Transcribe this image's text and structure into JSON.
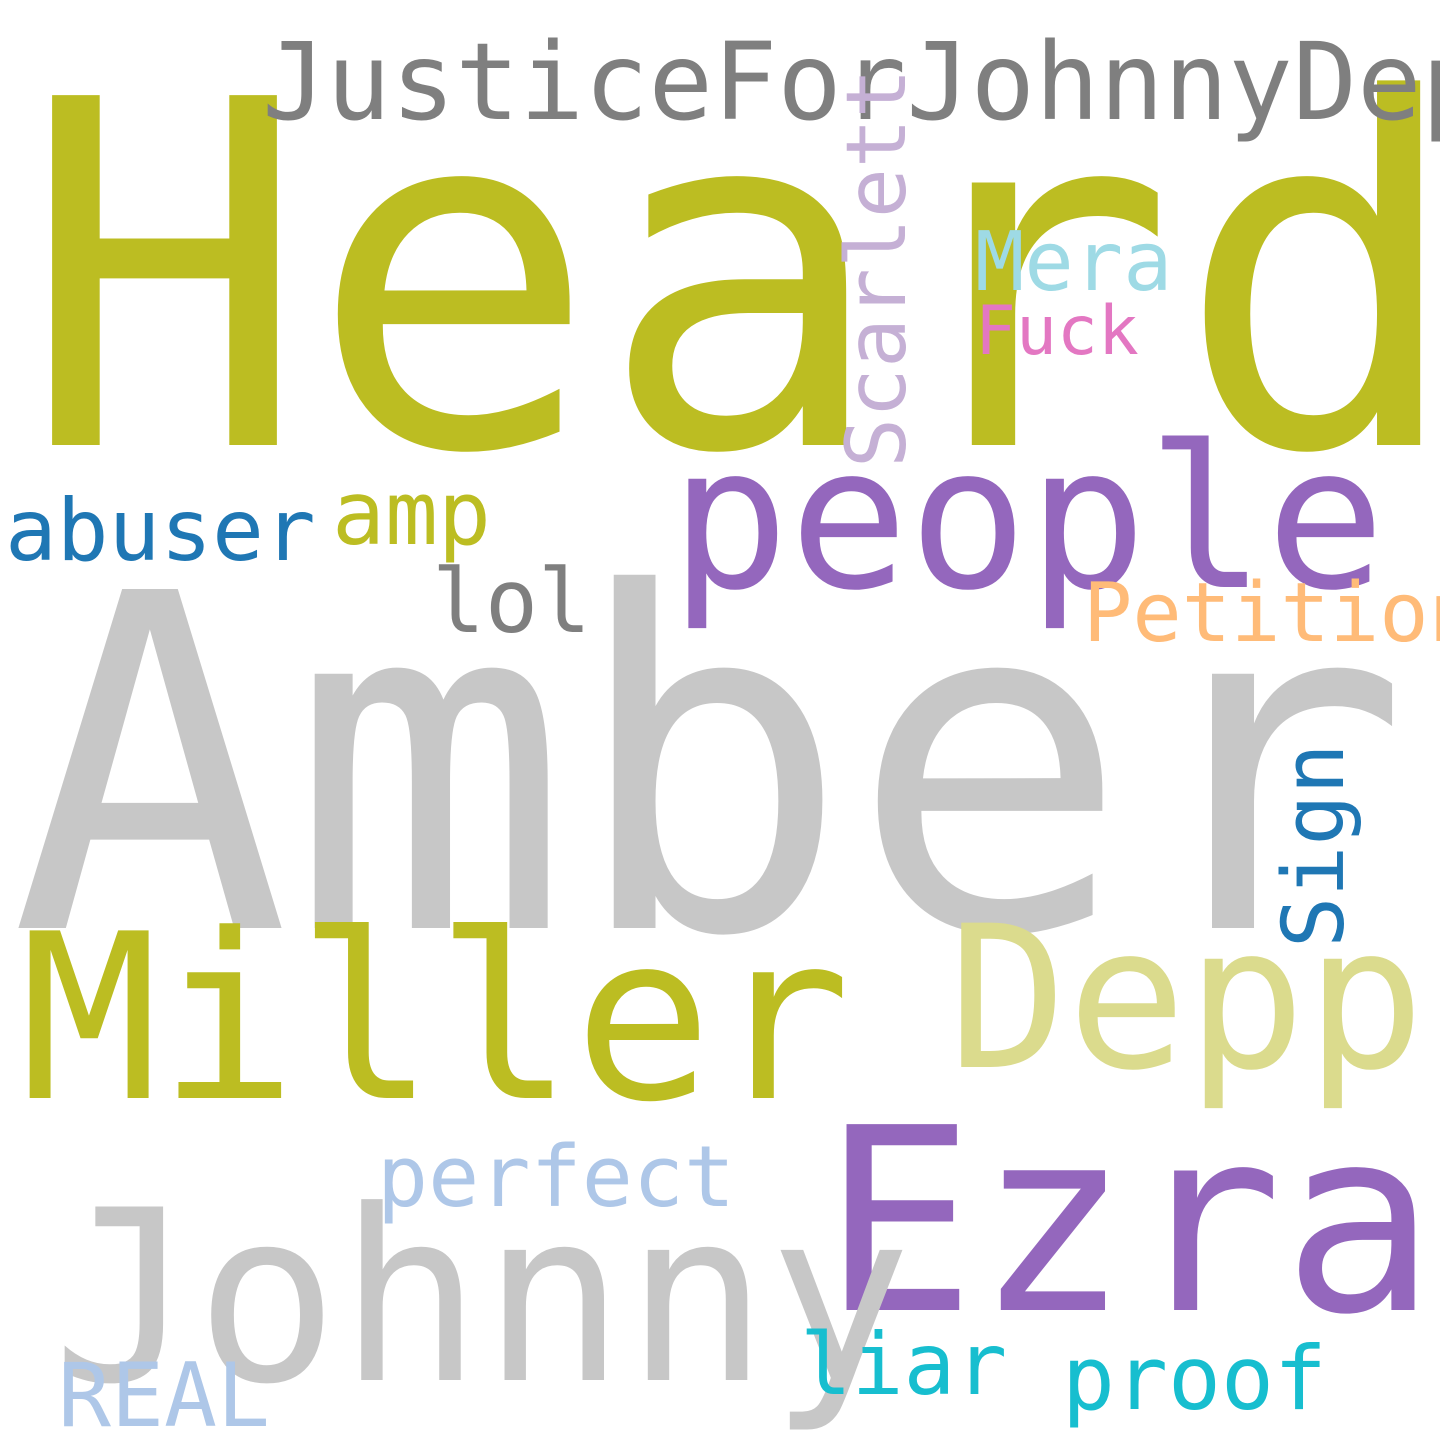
{
  "words": [
    {
      "key": "heard",
      "text": "Heard",
      "color": "#bcbd22"
    },
    {
      "key": "amber",
      "text": "Amber",
      "color": "#c7c7c7"
    },
    {
      "key": "miller",
      "text": "Miller",
      "color": "#bcbd22"
    },
    {
      "key": "ezra",
      "text": "Ezra",
      "color": "#9467bd"
    },
    {
      "key": "johnny",
      "text": "Johnny",
      "color": "#c7c7c7"
    },
    {
      "key": "depp",
      "text": "Depp",
      "color": "#dbdb8d"
    },
    {
      "key": "people",
      "text": "people",
      "color": "#9467bd"
    },
    {
      "key": "justicefor",
      "text": "JusticeForJohnnyDepp",
      "color": "#7f7f7f"
    },
    {
      "key": "scarlett",
      "text": "Scarlett",
      "color": "#c5b0d5"
    },
    {
      "key": "mera",
      "text": "Mera",
      "color": "#9edae5"
    },
    {
      "key": "fuck",
      "text": "Fuck",
      "color": "#e377c2"
    },
    {
      "key": "abuser",
      "text": "abuser",
      "color": "#1f77b4"
    },
    {
      "key": "amp",
      "text": "amp",
      "color": "#bcbd22"
    },
    {
      "key": "lol",
      "text": "lol",
      "color": "#7f7f7f"
    },
    {
      "key": "petition",
      "text": "Petition",
      "color": "#ffbb78"
    },
    {
      "key": "sign",
      "text": "Sign",
      "color": "#1f77b4"
    },
    {
      "key": "perfect",
      "text": "perfect",
      "color": "#aec7e8"
    },
    {
      "key": "liar",
      "text": "liar",
      "color": "#17becf"
    },
    {
      "key": "proof",
      "text": "proof",
      "color": "#17becf"
    },
    {
      "key": "real",
      "text": "REAL",
      "color": "#aec7e8"
    }
  ]
}
